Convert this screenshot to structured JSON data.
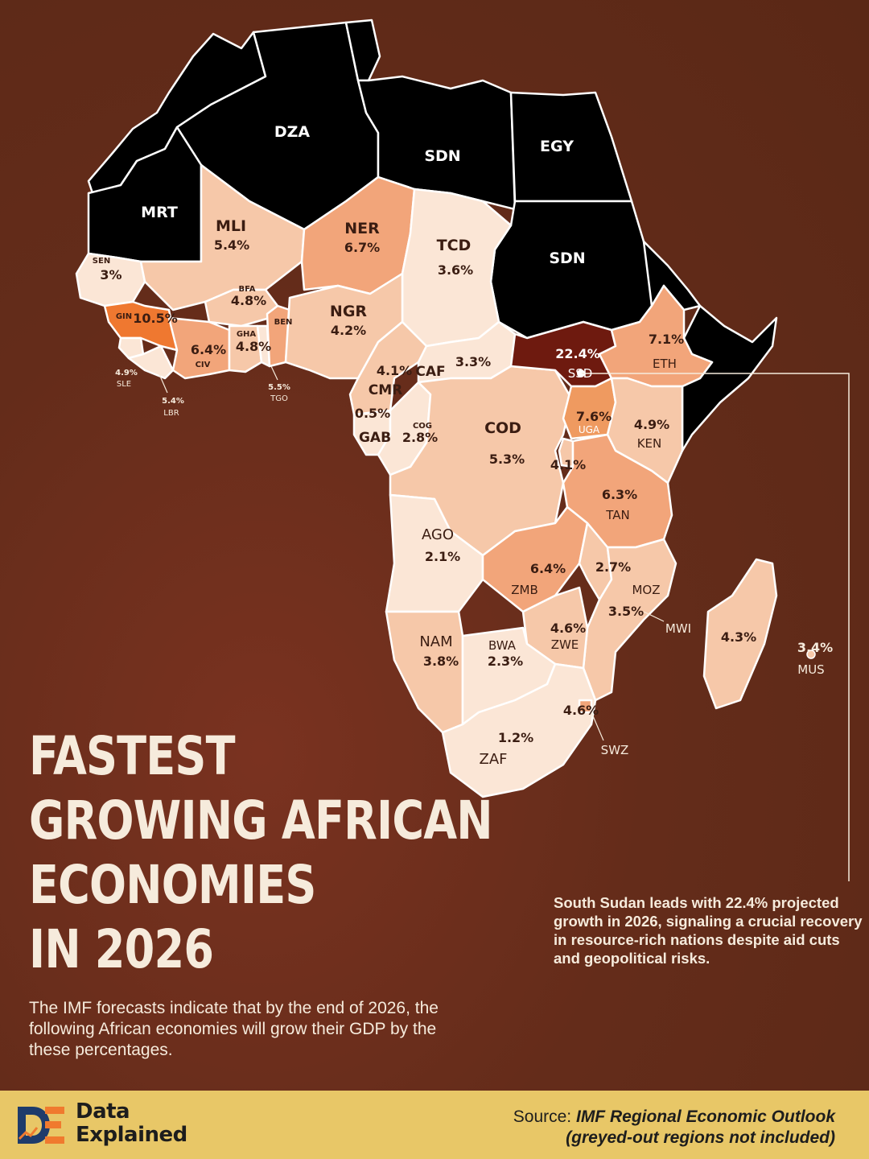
{
  "title_lines": [
    "FASTEST",
    "GROWING AFRICAN",
    "ECONOMIES",
    "IN 2026"
  ],
  "intro": "The IMF forecasts indicate that by the end of 2026, the following African economies will grow their GDP by the these percentages.",
  "callout": "South Sudan leads with 22.4% projected growth in 2026, signaling a crucial recovery in resource-rich nations despite aid cuts and geopolitical risks.",
  "brand": {
    "line1": "Data",
    "line2": "Explained"
  },
  "source": {
    "label": "Source: ",
    "title": "IMF Regional Economic Outlook",
    "note": "(greyed-out regions not included)"
  },
  "colors": {
    "background": "#642c1a",
    "excluded": "#000000",
    "highest": "#6e1a0f",
    "high": "#ef7830",
    "mid": "#f2a57a",
    "low": "#f6c8a9",
    "lowest": "#fbe6d6",
    "footer": "#e8c767"
  },
  "map": {
    "countries": [
      {
        "code": "DZA",
        "value": null,
        "status": "not included"
      },
      {
        "code": "SDN",
        "value": null,
        "status": "not included"
      },
      {
        "code": "EGY",
        "value": null,
        "status": "not included"
      },
      {
        "code": "MRT",
        "value": null,
        "status": "not included"
      },
      {
        "code": "SDN",
        "value": null,
        "status": "not included"
      },
      {
        "code": "SEN",
        "value": "3%"
      },
      {
        "code": "MLI",
        "value": "5.4%"
      },
      {
        "code": "NER",
        "value": "6.7%"
      },
      {
        "code": "TCD",
        "value": "3.6%"
      },
      {
        "code": "BFA",
        "value": "4.8%"
      },
      {
        "code": "GIN",
        "value": "10.5%"
      },
      {
        "code": "BEN",
        "value": ""
      },
      {
        "code": "NGR",
        "value": "4.2%"
      },
      {
        "code": "CIV",
        "value": "6.4%"
      },
      {
        "code": "GHA",
        "value": "4.8%"
      },
      {
        "code": "SLE",
        "value": "4.9%"
      },
      {
        "code": "LBR",
        "value": "5.4%"
      },
      {
        "code": "TGO",
        "value": "5.5%"
      },
      {
        "code": "CMR",
        "value": "4.1%"
      },
      {
        "code": "CAF",
        "value": "3.3%"
      },
      {
        "code": "SSD",
        "value": "22.4%"
      },
      {
        "code": "ETH",
        "value": "7.1%"
      },
      {
        "code": "GAB",
        "value": "0.5%"
      },
      {
        "code": "COG",
        "value": "2.8%"
      },
      {
        "code": "COD",
        "value": "5.3%"
      },
      {
        "code": "UGA",
        "value": "7.6%"
      },
      {
        "code": "KEN",
        "value": "4.9%"
      },
      {
        "code": "",
        "value": "4.1%"
      },
      {
        "code": "TAN",
        "value": "6.3%"
      },
      {
        "code": "AGO",
        "value": "2.1%"
      },
      {
        "code": "ZMB",
        "value": "6.4%"
      },
      {
        "code": "",
        "value": "2.7%"
      },
      {
        "code": "MOZ",
        "value": "3.5%"
      },
      {
        "code": "MWI",
        "value": ""
      },
      {
        "code": "",
        "value": "4.3%"
      },
      {
        "code": "MUS",
        "value": "3.4%"
      },
      {
        "code": "NAM",
        "value": "3.8%"
      },
      {
        "code": "BWA",
        "value": "2.3%"
      },
      {
        "code": "ZWE",
        "value": "4.6%"
      },
      {
        "code": "SWZ",
        "value": "4.6%"
      },
      {
        "code": "ZAF",
        "value": "1.2%"
      }
    ]
  }
}
